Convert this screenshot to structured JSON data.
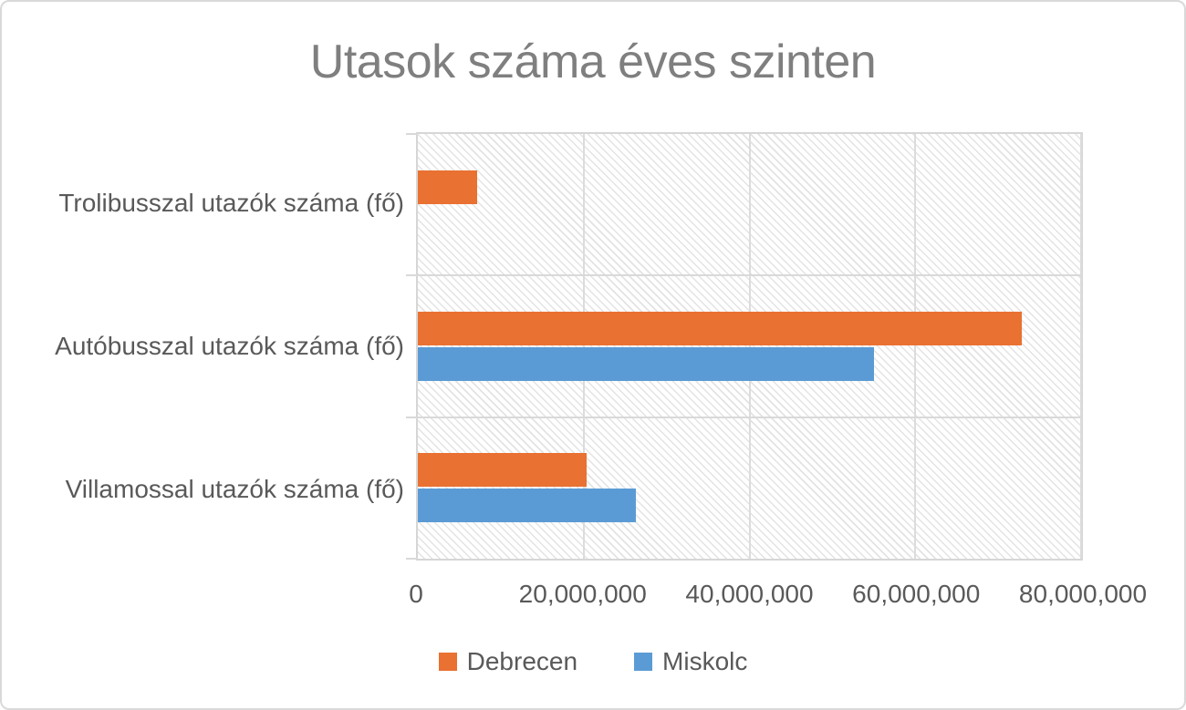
{
  "chart_data": {
    "type": "bar",
    "orientation": "horizontal",
    "title": "Utasok száma éves szinten",
    "categories": [
      "Trolibusszal utazók száma (fő)",
      "Autóbusszal utazók száma (fő)",
      "Villamossal utazók száma (fő)"
    ],
    "series": [
      {
        "name": "Debrecen",
        "color": "#e97132",
        "values": [
          7100000,
          72900000,
          20400000
        ]
      },
      {
        "name": "Miskolc",
        "color": "#5b9bd5",
        "values": [
          0,
          55000000,
          26300000
        ]
      }
    ],
    "xlim": [
      0,
      80000000
    ],
    "x_ticks": [
      0,
      20000000,
      40000000,
      60000000,
      80000000
    ],
    "x_tick_labels": [
      "0",
      "20,000,000",
      "40,000,000",
      "60,000,000",
      "80,000,000"
    ],
    "grid": "vertical-gridlines-on",
    "plot_background": "diagonal-hatch",
    "legend_position": "bottom"
  },
  "colors": {
    "title_text": "#7f7f7f",
    "axis_text": "#595959",
    "gridline": "#dcdcdc"
  }
}
